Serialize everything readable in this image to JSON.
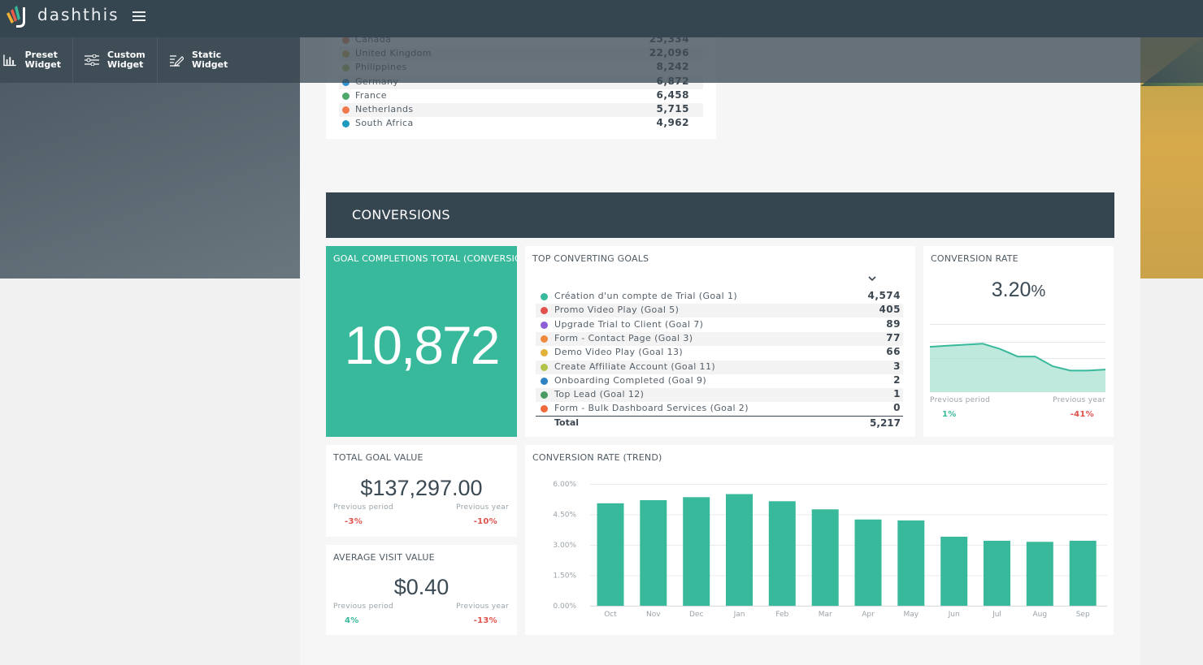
{
  "app": {
    "brand": "dashthis"
  },
  "toolbar": {
    "items": [
      {
        "line1": "Preset",
        "line2": "Widget",
        "icon": "bar-chart-icon"
      },
      {
        "line1": "Custom",
        "line2": "Widget",
        "icon": "sliders-icon"
      },
      {
        "line1": "Static",
        "line2": "Widget",
        "icon": "edit-icon"
      }
    ]
  },
  "countries": [
    {
      "name": "Canada",
      "value": "25,334",
      "color": "#f08a5d"
    },
    {
      "name": "United Kingdom",
      "value": "22,096",
      "color": "#d8b24a"
    },
    {
      "name": "Philippines",
      "value": "8,242",
      "color": "#b6c35a"
    },
    {
      "name": "Germany",
      "value": "6,872",
      "color": "#2f8fcf"
    },
    {
      "name": "France",
      "value": "6,458",
      "color": "#4ea86b"
    },
    {
      "name": "Netherlands",
      "value": "5,715",
      "color": "#f07a4b"
    },
    {
      "name": "South Africa",
      "value": "4,962",
      "color": "#1c9bbf"
    }
  ],
  "section": {
    "title": "CONVERSIONS"
  },
  "goal_total": {
    "title": "GOAL COMPLETIONS TOTAL (CONVERSIONS)",
    "value": "10,872"
  },
  "top_goals": {
    "title": "TOP CONVERTING GOALS",
    "rows": [
      {
        "name": "Création d'un compte de Trial (Goal 1)",
        "value": "4,574",
        "color": "#39b99b"
      },
      {
        "name": "Promo Video Play (Goal 5)",
        "value": "405",
        "color": "#e0514b"
      },
      {
        "name": "Upgrade Trial to Client (Goal 7)",
        "value": "89",
        "color": "#8c5fd6"
      },
      {
        "name": "Form - Contact Page (Goal 3)",
        "value": "77",
        "color": "#f08a3c"
      },
      {
        "name": "Demo Video Play (Goal 13)",
        "value": "66",
        "color": "#e1b13a"
      },
      {
        "name": "Create Affiliate Account (Goal 11)",
        "value": "3",
        "color": "#b2c24a"
      },
      {
        "name": "Onboarding Completed (Goal 9)",
        "value": "2",
        "color": "#2d83c4"
      },
      {
        "name": "Top Lead (Goal 12)",
        "value": "1",
        "color": "#4b9a5f"
      },
      {
        "name": "Form - Bulk Dashboard Services (Goal 2)",
        "value": "0",
        "color": "#ee6a3d"
      }
    ],
    "total_label": "Total",
    "total_value": "5,217"
  },
  "conversion_rate": {
    "title": "CONVERSION RATE",
    "value": "3.20",
    "unit": "%",
    "prev_period_label": "Previous period",
    "prev_period_value": "1%",
    "prev_year_label": "Previous year",
    "prev_year_value": "-41%",
    "sparkline": [
      4.2,
      4.3,
      4.4,
      4.5,
      4.0,
      3.3,
      3.3,
      2.4,
      2.0,
      2.0,
      2.1
    ]
  },
  "goal_value": {
    "title": "TOTAL GOAL VALUE",
    "value": "$137,297.00",
    "prev_period_label": "Previous period",
    "prev_period_value": "-3%",
    "prev_year_label": "Previous year",
    "prev_year_value": "-10%"
  },
  "avg_visit": {
    "title": "AVERAGE VISIT VALUE",
    "value": "$0.40",
    "prev_period_label": "Previous period",
    "prev_period_value": "4%",
    "prev_year_label": "Previous year",
    "prev_year_value": "-13%"
  },
  "chart_data": {
    "type": "bar",
    "title": "CONVERSION RATE (TREND)",
    "categories": [
      "Oct",
      "Nov",
      "Dec",
      "Jan",
      "Feb",
      "Mar",
      "Apr",
      "May",
      "Jun",
      "Jul",
      "Aug",
      "Sep"
    ],
    "values": [
      5.05,
      5.2,
      5.35,
      5.5,
      5.15,
      4.75,
      4.25,
      4.2,
      3.4,
      3.2,
      3.15,
      3.2
    ],
    "yticks": [
      "0.00%",
      "1.50%",
      "3.00%",
      "4.50%",
      "6.00%"
    ],
    "ylim": [
      0,
      6
    ],
    "color": "#39b99b",
    "grid": true
  }
}
